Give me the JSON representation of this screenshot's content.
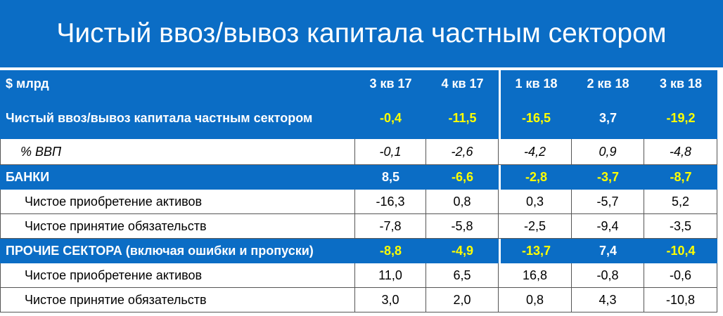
{
  "header": {
    "title": "Чистый ввоз/вывоз капитала частным сектором"
  },
  "table": {
    "columns": [
      "$ млрд",
      "3 кв 17",
      "4 кв 17",
      "1 кв 18",
      "2 кв 18",
      "3 кв 18"
    ],
    "rows": [
      {
        "kind": "total",
        "cells": [
          "Чистый ввоз/вывоз капитала частным сектором",
          "-0,4",
          "-11,5",
          "-16,5",
          "3,7",
          "-19,2"
        ]
      },
      {
        "kind": "pct",
        "cells": [
          "% ВВП",
          "-0,1",
          "-2,6",
          "-4,2",
          "0,9",
          "-4,8"
        ]
      },
      {
        "kind": "section",
        "cells": [
          "БАНКИ",
          "8,5",
          "-6,6",
          "-2,8",
          "-3,7",
          "-8,7"
        ]
      },
      {
        "kind": "sub",
        "cells": [
          "Чистое приобретение активов",
          "-16,3",
          "0,8",
          "0,3",
          "-5,7",
          "5,2"
        ]
      },
      {
        "kind": "sub",
        "cells": [
          "Чистое принятие обязательств",
          "-7,8",
          "-5,8",
          "-2,5",
          "-9,4",
          "-3,5"
        ]
      },
      {
        "kind": "section",
        "cells": [
          "ПРОЧИЕ СЕКТОРА (включая ошибки и пропуски)",
          "-8,8",
          "-4,9",
          "-13,7",
          "7,4",
          "-10,4"
        ]
      },
      {
        "kind": "sub",
        "cells": [
          "Чистое приобретение активов",
          "11,0",
          "6,5",
          "16,8",
          "-0,8",
          "-0,6"
        ]
      },
      {
        "kind": "sub",
        "cells": [
          "Чистое принятие обязательств",
          "3,0",
          "2,0",
          "0,8",
          "4,3",
          "-10,8"
        ]
      }
    ],
    "blue": "#0b6dc5",
    "highlight_color": "#ffff00"
  }
}
